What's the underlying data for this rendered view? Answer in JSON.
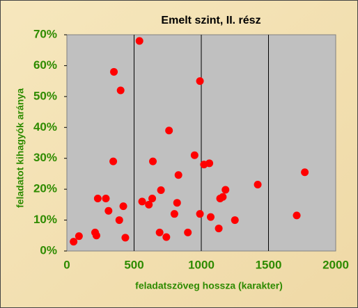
{
  "chart_data": {
    "type": "scatter",
    "title": "Emelt szint, II. rész",
    "xlabel": "feladatszöveg hossza (karakter)",
    "ylabel": "feladatot kihagyók  aránya",
    "xlim": [
      0,
      2000
    ],
    "xticks": [
      0,
      500,
      1000,
      1500,
      2000
    ],
    "ylim": [
      0,
      70
    ],
    "yticks": [
      {
        "value": 0,
        "label": "0%"
      },
      {
        "value": 10,
        "label": "10%"
      },
      {
        "value": 20,
        "label": "20%"
      },
      {
        "value": 30,
        "label": "30%"
      },
      {
        "value": 40,
        "label": "40%"
      },
      {
        "value": 50,
        "label": "50%"
      },
      {
        "value": 60,
        "label": "60%"
      },
      {
        "value": 70,
        "label": "70%"
      }
    ],
    "grid": true,
    "color": "#ff0000",
    "x": [
      50,
      90,
      210,
      220,
      230,
      290,
      310,
      345,
      350,
      390,
      400,
      420,
      435,
      540,
      560,
      610,
      635,
      640,
      690,
      700,
      740,
      760,
      800,
      820,
      830,
      900,
      950,
      990,
      990,
      1020,
      1060,
      1070,
      1130,
      1140,
      1160,
      1180,
      1250,
      1420,
      1710,
      1770
    ],
    "values": [
      3,
      4.8,
      6,
      5,
      17,
      17,
      13,
      29,
      58,
      10,
      52,
      14.5,
      4.3,
      68,
      16,
      15,
      17,
      29,
      6,
      19.7,
      4.5,
      39,
      12,
      15.6,
      24.6,
      6,
      31,
      12,
      55,
      28,
      28.4,
      11,
      7.3,
      17,
      17.5,
      19.8,
      10,
      21.5,
      11.5,
      25.5
    ]
  }
}
